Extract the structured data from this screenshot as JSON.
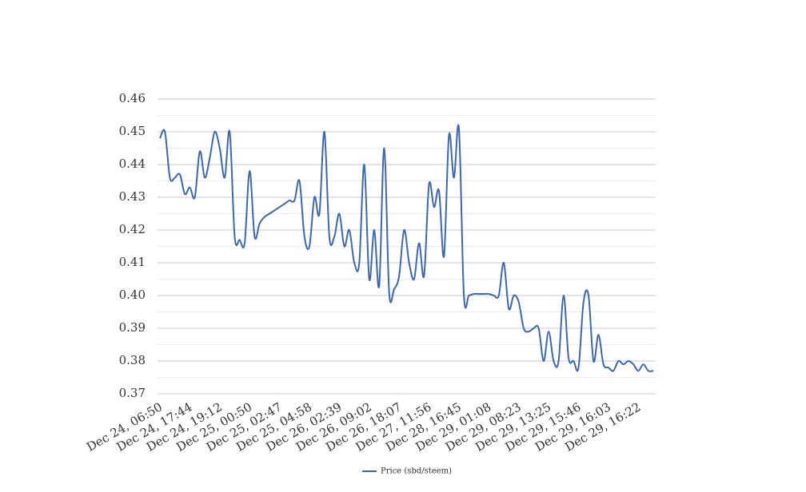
{
  "chart_data": {
    "type": "line",
    "categories": [
      "Dec 24, 06:50",
      null,
      null,
      null,
      null,
      null,
      "Dec 24, 17:44",
      null,
      null,
      null,
      null,
      null,
      "Dec 24, 19:12",
      null,
      null,
      null,
      null,
      null,
      "Dec 25, 00:50",
      null,
      null,
      null,
      null,
      null,
      "Dec 25, 02:47",
      null,
      null,
      null,
      null,
      null,
      "Dec 25, 04:58",
      null,
      null,
      null,
      null,
      null,
      "Dec 26, 02:39",
      null,
      null,
      null,
      null,
      null,
      "Dec 26, 09:02",
      null,
      null,
      null,
      null,
      null,
      "Dec 26, 18:07",
      null,
      null,
      null,
      null,
      null,
      "Dec 27, 11:56",
      null,
      null,
      null,
      null,
      null,
      "Dec 28, 16:45",
      null,
      null,
      null,
      null,
      null,
      "Dec 29, 01:08",
      null,
      null,
      null,
      null,
      null,
      "Dec 29, 08:23",
      null,
      null,
      null,
      null,
      null,
      "Dec 29, 13:25",
      null,
      null,
      null,
      null,
      null,
      "Dec 29, 15:46",
      null,
      null,
      null,
      null,
      null,
      "Dec 29, 16:03",
      null,
      null,
      null,
      null,
      null,
      "Dec 29, 16:22",
      null,
      null,
      null
    ],
    "series": [
      {
        "name": "Price (sbd/steem)",
        "color": "#3a67b5",
        "values": [
          0.448,
          0.45,
          0.436,
          0.436,
          0.437,
          0.431,
          0.433,
          0.43,
          0.444,
          0.436,
          0.442,
          0.45,
          0.445,
          0.436,
          0.45,
          0.418,
          0.417,
          0.416,
          0.438,
          0.418,
          0.422,
          0.424,
          0.425,
          0.426,
          0.427,
          0.428,
          0.429,
          0.429,
          0.435,
          0.418,
          0.415,
          0.43,
          0.425,
          0.45,
          0.418,
          0.418,
          0.425,
          0.415,
          0.42,
          0.41,
          0.41,
          0.44,
          0.405,
          0.42,
          0.403,
          0.445,
          0.401,
          0.402,
          0.406,
          0.42,
          0.41,
          0.405,
          0.416,
          0.406,
          0.434,
          0.427,
          0.432,
          0.412,
          0.449,
          0.436,
          0.451,
          0.4,
          0.4,
          0.4005,
          0.4005,
          0.4005,
          0.4005,
          0.4,
          0.4,
          0.41,
          0.396,
          0.4,
          0.398,
          0.39,
          0.389,
          0.39,
          0.39,
          0.38,
          0.389,
          0.38,
          0.38,
          0.4,
          0.381,
          0.38,
          0.378,
          0.398,
          0.4,
          0.38,
          0.388,
          0.379,
          0.378,
          0.377,
          0.38,
          0.379,
          0.38,
          0.379,
          0.377,
          0.379,
          0.377,
          0.377
        ]
      }
    ],
    "ylim": [
      0.37,
      0.46
    ],
    "yticks": [
      0.37,
      0.38,
      0.39,
      {
        "value": 0.4,
        "label": "0.40"
      },
      0.41,
      0.42,
      0.43,
      0.44,
      0.45,
      0.46
    ],
    "grid": true,
    "minor_grid": true,
    "smooth": true,
    "legend": "bottom"
  }
}
